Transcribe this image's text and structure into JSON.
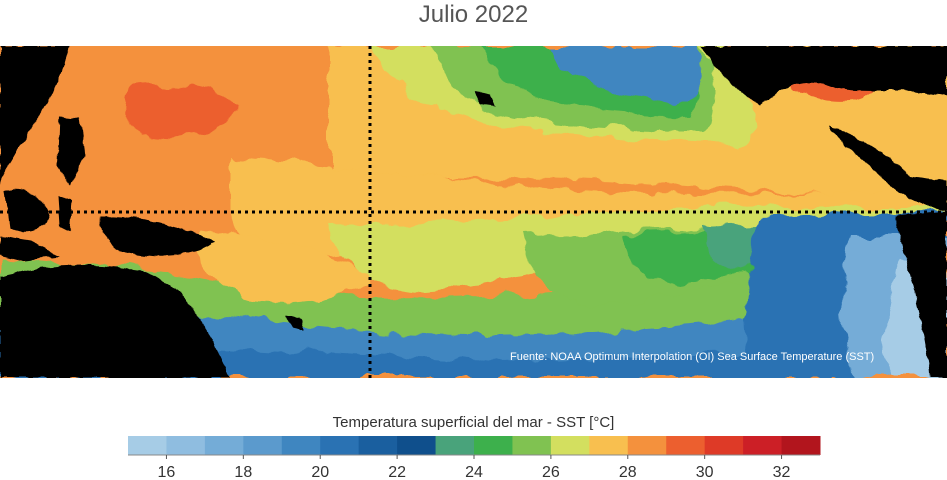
{
  "title": "Julio 2022",
  "source": "Fuente: NOAA Optimum Interpolation (OI) Sea Surface Temperature (SST)",
  "colorbar": {
    "label": "Temperatura superficial del mar - SST  [°C]",
    "ticks": [
      "16",
      "18",
      "20",
      "22",
      "24",
      "26",
      "28",
      "30",
      "32"
    ],
    "colors": [
      "#a6cce6",
      "#8fbde0",
      "#74acd7",
      "#5b9acd",
      "#3f86c0",
      "#2a72b3",
      "#1a5f9f",
      "#0f4f8c",
      "#49a37b",
      "#3db04c",
      "#80c251",
      "#d3df5f",
      "#f8bf4f",
      "#f4913d",
      "#ec5f2f",
      "#de3a27",
      "#cc1f26",
      "#b2151d"
    ]
  },
  "map": {
    "land_color": "#000000",
    "ocean_base_color": "#f4913d",
    "reference_lines": [
      "equator",
      "dateline"
    ]
  }
}
